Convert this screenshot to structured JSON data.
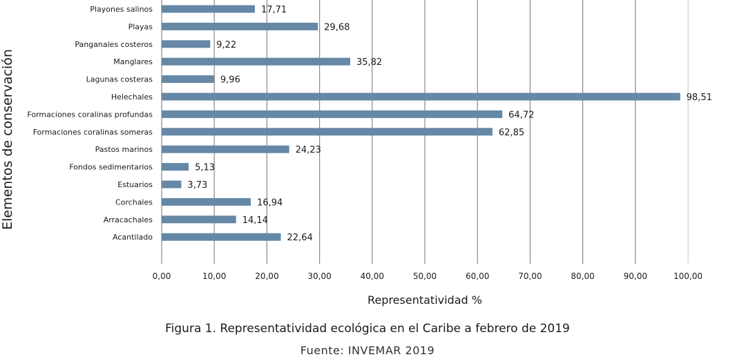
{
  "chart_data": {
    "type": "bar",
    "orientation": "horizontal",
    "categories": [
      "Playones salinos",
      "Playas",
      "Panganales costeros",
      "Manglares",
      "Lagunas costeras",
      "Helechales",
      "Formaciones coralinas profundas",
      "Formaciones coralinas someras",
      "Pastos marinos",
      "Fondos sedimentarios",
      "Estuarios",
      "Corchales",
      "Arracachales",
      "Acantilado"
    ],
    "values": [
      17.71,
      29.68,
      9.22,
      35.82,
      9.96,
      98.51,
      64.72,
      62.85,
      24.23,
      5.13,
      3.73,
      16.94,
      14.14,
      22.64
    ],
    "value_labels": [
      "17,71",
      "29,68",
      "9,22",
      "35,82",
      "9,96",
      "98,51",
      "64,72",
      "62,85",
      "24,23",
      "5,13",
      "3,73",
      "16,94",
      "14,14",
      "22,64"
    ],
    "xlabel": "Representatividad %",
    "ylabel": "Elementos de conservación",
    "xlim": [
      0,
      100
    ],
    "x_ticks": [
      0,
      10,
      20,
      30,
      40,
      50,
      60,
      70,
      80,
      90,
      100
    ],
    "x_tick_labels": [
      "0,00",
      "10,00",
      "20,00",
      "30,00",
      "40,00",
      "50,00",
      "60,00",
      "70,00",
      "80,00",
      "90,00",
      "100,00"
    ],
    "grid": "vertical",
    "legend": "none",
    "bar_color": "#6588a6",
    "grid_color": "#888888"
  },
  "caption": {
    "title": "Figura 1. Representatividad ecológica en el Caribe a febrero de 2019",
    "source": "Fuente: INVEMAR 2019"
  }
}
